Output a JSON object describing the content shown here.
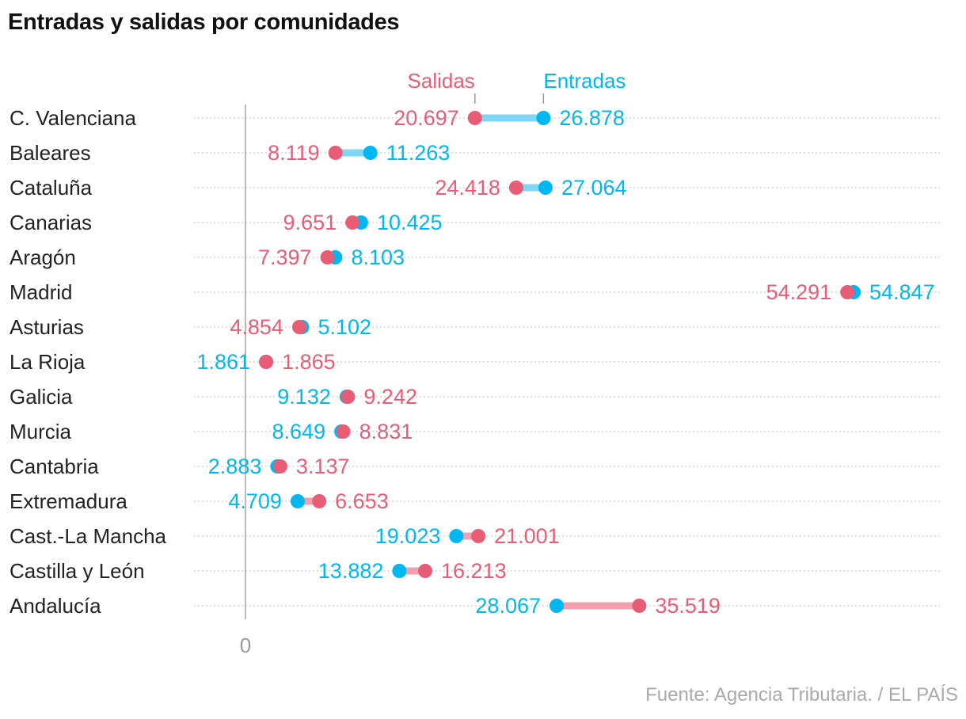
{
  "title": "Entradas y salidas por comunidades",
  "source": "Fuente: Agencia Tributaria. / EL PAÍS",
  "chart_data": {
    "type": "dumbbell",
    "title": "Entradas y salidas por comunidades",
    "legend": {
      "placement": "top",
      "entries": [
        "Salidas",
        "Entradas"
      ]
    },
    "colors": {
      "Salidas": "#e85d75",
      "Entradas": "#00b8f0",
      "bar_up": "#7fd6f5",
      "bar_down": "#f2a0ae",
      "axis": "#bbb",
      "grid": "#ccc"
    },
    "x_ticks": [
      "0"
    ],
    "xlim": [
      0,
      56000
    ],
    "grid": "dotted-horizontal",
    "categories": [
      "C. Valenciana",
      "Baleares",
      "Cataluña",
      "Canarias",
      "Aragón",
      "Madrid",
      "Asturias",
      "La Rioja",
      "Galicia",
      "Murcia",
      "Cantabria",
      "Extremadura",
      "Cast.-La Mancha",
      "Castilla y León",
      "Andalucía"
    ],
    "series": [
      {
        "name": "Salidas",
        "values": [
          20697,
          8119,
          24418,
          9651,
          7397,
          54291,
          4854,
          1865,
          9242,
          8831,
          3137,
          6653,
          21001,
          16213,
          35519
        ],
        "labels": [
          "20.697",
          "8.119",
          "24.418",
          "9.651",
          "7.397",
          "54.291",
          "4.854",
          "1.865",
          "9.242",
          "8.831",
          "3.137",
          "6.653",
          "21.001",
          "16.213",
          "35.519"
        ]
      },
      {
        "name": "Entradas",
        "values": [
          26878,
          11263,
          27064,
          10425,
          8103,
          54847,
          5102,
          1861,
          9132,
          8649,
          2883,
          4709,
          19023,
          13882,
          28067
        ],
        "labels": [
          "26.878",
          "11.263",
          "27.064",
          "10.425",
          "8.103",
          "54.847",
          "5.102",
          "1.861",
          "9.132",
          "8.649",
          "2.883",
          "4.709",
          "19.023",
          "13.882",
          "28.067"
        ]
      }
    ]
  }
}
